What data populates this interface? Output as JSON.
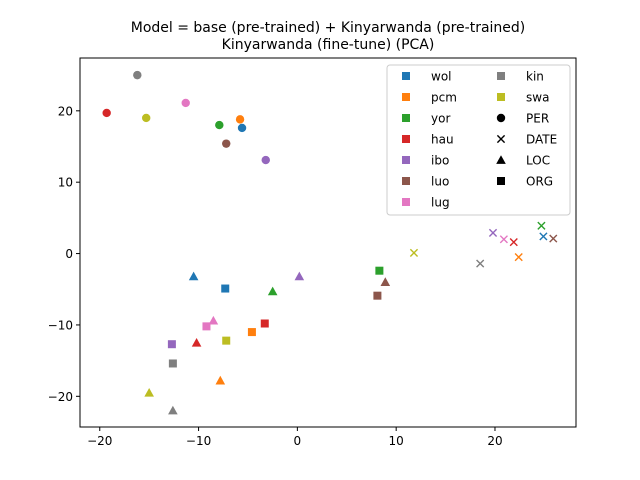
{
  "chart_data": {
    "type": "scatter",
    "title_lines": [
      "Model = base (pre-trained) + Kinyarwanda (pre-trained)",
      "Kinyarwanda (fine-tune) (PCA)"
    ],
    "xlabel": "",
    "ylabel": "",
    "xlim": [
      -22,
      28.2
    ],
    "ylim": [
      -24.3,
      27.4
    ],
    "xticks": [
      -20,
      -10,
      0,
      10,
      20
    ],
    "yticks": [
      -20,
      -10,
      0,
      10,
      20
    ],
    "grid": false,
    "legend_position": "top-right",
    "languages": [
      {
        "name": "wol",
        "color": "#1f77b4"
      },
      {
        "name": "pcm",
        "color": "#ff7f0e"
      },
      {
        "name": "yor",
        "color": "#2ca02c"
      },
      {
        "name": "hau",
        "color": "#d62728"
      },
      {
        "name": "ibo",
        "color": "#9467bd"
      },
      {
        "name": "luo",
        "color": "#8c564b"
      },
      {
        "name": "lug",
        "color": "#e377c2"
      },
      {
        "name": "kin",
        "color": "#7f7f7f"
      },
      {
        "name": "swa",
        "color": "#bcbd22"
      }
    ],
    "entity_types": [
      {
        "name": "PER",
        "marker": "circle"
      },
      {
        "name": "DATE",
        "marker": "x"
      },
      {
        "name": "LOC",
        "marker": "triangle"
      },
      {
        "name": "ORG",
        "marker": "square"
      }
    ],
    "points": [
      {
        "lang": "kin",
        "entity": "PER",
        "x": -16.2,
        "y": 25.0
      },
      {
        "lang": "hau",
        "entity": "PER",
        "x": -19.3,
        "y": 19.7
      },
      {
        "lang": "swa",
        "entity": "PER",
        "x": -15.3,
        "y": 19.0
      },
      {
        "lang": "lug",
        "entity": "PER",
        "x": -11.3,
        "y": 21.1
      },
      {
        "lang": "yor",
        "entity": "PER",
        "x": -7.9,
        "y": 18.0
      },
      {
        "lang": "pcm",
        "entity": "PER",
        "x": -5.8,
        "y": 18.8
      },
      {
        "lang": "wol",
        "entity": "PER",
        "x": -5.6,
        "y": 17.6
      },
      {
        "lang": "luo",
        "entity": "PER",
        "x": -7.2,
        "y": 15.4
      },
      {
        "lang": "ibo",
        "entity": "PER",
        "x": -3.2,
        "y": 13.1
      },
      {
        "lang": "swa",
        "entity": "DATE",
        "x": 11.8,
        "y": 0.1
      },
      {
        "lang": "kin",
        "entity": "DATE",
        "x": 18.5,
        "y": -1.4
      },
      {
        "lang": "ibo",
        "entity": "DATE",
        "x": 19.8,
        "y": 2.9
      },
      {
        "lang": "lug",
        "entity": "DATE",
        "x": 20.9,
        "y": 2.0
      },
      {
        "lang": "hau",
        "entity": "DATE",
        "x": 21.9,
        "y": 1.6
      },
      {
        "lang": "pcm",
        "entity": "DATE",
        "x": 22.4,
        "y": -0.5
      },
      {
        "lang": "yor",
        "entity": "DATE",
        "x": 24.7,
        "y": 3.9
      },
      {
        "lang": "wol",
        "entity": "DATE",
        "x": 24.9,
        "y": 2.4
      },
      {
        "lang": "luo",
        "entity": "DATE",
        "x": 25.9,
        "y": 2.1
      },
      {
        "lang": "wol",
        "entity": "LOC",
        "x": -10.5,
        "y": -3.2
      },
      {
        "lang": "yor",
        "entity": "LOC",
        "x": -2.5,
        "y": -5.3
      },
      {
        "lang": "ibo",
        "entity": "LOC",
        "x": 0.2,
        "y": -3.2
      },
      {
        "lang": "luo",
        "entity": "LOC",
        "x": 8.9,
        "y": -4.0
      },
      {
        "lang": "lug",
        "entity": "LOC",
        "x": -8.5,
        "y": -9.4
      },
      {
        "lang": "hau",
        "entity": "LOC",
        "x": -10.2,
        "y": -12.5
      },
      {
        "lang": "pcm",
        "entity": "LOC",
        "x": -7.8,
        "y": -17.8
      },
      {
        "lang": "swa",
        "entity": "LOC",
        "x": -15.0,
        "y": -19.5
      },
      {
        "lang": "kin",
        "entity": "LOC",
        "x": -12.6,
        "y": -22.0
      },
      {
        "lang": "wol",
        "entity": "ORG",
        "x": -7.3,
        "y": -4.9
      },
      {
        "lang": "yor",
        "entity": "ORG",
        "x": 8.3,
        "y": -2.4
      },
      {
        "lang": "luo",
        "entity": "ORG",
        "x": 8.1,
        "y": -5.9
      },
      {
        "lang": "lug",
        "entity": "ORG",
        "x": -9.2,
        "y": -10.2
      },
      {
        "lang": "hau",
        "entity": "ORG",
        "x": -3.3,
        "y": -9.8
      },
      {
        "lang": "pcm",
        "entity": "ORG",
        "x": -4.6,
        "y": -11.0
      },
      {
        "lang": "swa",
        "entity": "ORG",
        "x": -7.2,
        "y": -12.2
      },
      {
        "lang": "ibo",
        "entity": "ORG",
        "x": -12.7,
        "y": -12.7
      },
      {
        "lang": "kin",
        "entity": "ORG",
        "x": -12.6,
        "y": -15.4
      }
    ]
  }
}
